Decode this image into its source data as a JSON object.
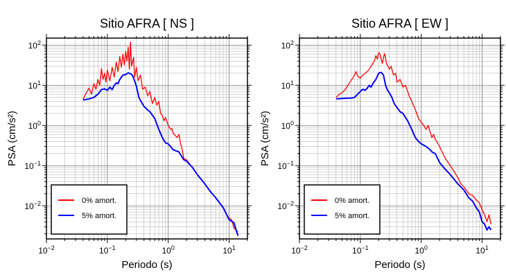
{
  "chart_data": [
    {
      "type": "line",
      "title": "Sitio AFRA [ NS ]",
      "xlabel": "Periodo (s)",
      "ylabel": "PSA (cm/s²)",
      "xscale": "log",
      "yscale": "log",
      "xlim": [
        0.01,
        20
      ],
      "ylim": [
        0.0015,
        150
      ],
      "grid": true,
      "legend_position": "bottom-left",
      "xticks": [
        {
          "value": 0.01,
          "base": "10",
          "exp": "−2"
        },
        {
          "value": 0.1,
          "base": "10",
          "exp": "−1"
        },
        {
          "value": 1,
          "base": "10",
          "exp": "0"
        },
        {
          "value": 10,
          "base": "10",
          "exp": "1"
        }
      ],
      "yticks": [
        {
          "value": 0.01,
          "base": "10",
          "exp": "−2"
        },
        {
          "value": 0.1,
          "base": "10",
          "exp": "−1"
        },
        {
          "value": 1,
          "base": "10",
          "exp": "0"
        },
        {
          "value": 10,
          "base": "10",
          "exp": "1"
        },
        {
          "value": 100,
          "base": "10",
          "exp": "2"
        }
      ],
      "series": [
        {
          "name": "0% amort.",
          "color": "#ff0000",
          "points": [
            [
              0.04,
              4.5
            ],
            [
              0.045,
              6.5
            ],
            [
              0.05,
              8.5
            ],
            [
              0.055,
              6.0
            ],
            [
              0.06,
              11.0
            ],
            [
              0.065,
              8.0
            ],
            [
              0.07,
              14.0
            ],
            [
              0.075,
              10.0
            ],
            [
              0.08,
              26.0
            ],
            [
              0.085,
              14.0
            ],
            [
              0.09,
              20.0
            ],
            [
              0.095,
              12.0
            ],
            [
              0.1,
              24.0
            ],
            [
              0.11,
              13.0
            ],
            [
              0.12,
              28.0
            ],
            [
              0.13,
              16.0
            ],
            [
              0.14,
              38.0
            ],
            [
              0.15,
              22.0
            ],
            [
              0.16,
              52.0
            ],
            [
              0.17,
              28.0
            ],
            [
              0.18,
              60.0
            ],
            [
              0.19,
              32.0
            ],
            [
              0.2,
              70.0
            ],
            [
              0.21,
              40.0
            ],
            [
              0.22,
              90.0
            ],
            [
              0.23,
              25.0
            ],
            [
              0.24,
              120.0
            ],
            [
              0.25,
              30.0
            ],
            [
              0.27,
              50.0
            ],
            [
              0.28,
              16.0
            ],
            [
              0.3,
              28.0
            ],
            [
              0.32,
              13.0
            ],
            [
              0.35,
              18.0
            ],
            [
              0.38,
              8.0
            ],
            [
              0.42,
              9.0
            ],
            [
              0.46,
              5.5
            ],
            [
              0.5,
              7.0
            ],
            [
              0.55,
              3.5
            ],
            [
              0.6,
              5.0
            ],
            [
              0.65,
              3.2
            ],
            [
              0.7,
              4.0
            ],
            [
              0.75,
              2.0
            ],
            [
              0.8,
              1.8
            ],
            [
              0.85,
              1.3
            ],
            [
              0.9,
              1.6
            ],
            [
              1.0,
              1.0
            ],
            [
              1.1,
              0.8
            ],
            [
              1.15,
              0.85
            ],
            [
              1.2,
              0.65
            ],
            [
              1.4,
              0.5
            ],
            [
              1.5,
              0.6
            ],
            [
              1.6,
              0.35
            ],
            [
              1.7,
              0.25
            ],
            [
              1.8,
              0.15
            ],
            [
              2.0,
              0.14
            ],
            [
              2.5,
              0.09
            ],
            [
              3.0,
              0.06
            ],
            [
              4.0,
              0.035
            ],
            [
              5.0,
              0.022
            ],
            [
              6.0,
              0.016
            ],
            [
              8.0,
              0.009
            ],
            [
              9.0,
              0.006
            ],
            [
              10.0,
              0.005
            ],
            [
              11.0,
              0.0045
            ],
            [
              12.0,
              0.0028
            ],
            [
              13.0,
              0.0025
            ],
            [
              14.0,
              0.0022
            ]
          ]
        },
        {
          "name": "5% amort.",
          "color": "#0000ff",
          "points": [
            [
              0.04,
              4.3
            ],
            [
              0.05,
              4.6
            ],
            [
              0.06,
              5.0
            ],
            [
              0.07,
              6.0
            ],
            [
              0.08,
              7.8
            ],
            [
              0.09,
              8.2
            ],
            [
              0.1,
              7.5
            ],
            [
              0.11,
              9.0
            ],
            [
              0.12,
              7.8
            ],
            [
              0.13,
              10.0
            ],
            [
              0.14,
              11.5
            ],
            [
              0.15,
              11.0
            ],
            [
              0.16,
              14.0
            ],
            [
              0.18,
              18.0
            ],
            [
              0.2,
              18.5
            ],
            [
              0.22,
              20.5
            ],
            [
              0.24,
              19.5
            ],
            [
              0.26,
              17.5
            ],
            [
              0.28,
              13.0
            ],
            [
              0.3,
              9.5
            ],
            [
              0.33,
              5.0
            ],
            [
              0.36,
              3.9
            ],
            [
              0.4,
              3.0
            ],
            [
              0.45,
              2.5
            ],
            [
              0.5,
              2.2
            ],
            [
              0.6,
              1.5
            ],
            [
              0.7,
              0.8
            ],
            [
              0.8,
              0.5
            ],
            [
              0.9,
              0.37
            ],
            [
              1.0,
              0.35
            ],
            [
              1.2,
              0.25
            ],
            [
              1.5,
              0.22
            ],
            [
              1.8,
              0.14
            ],
            [
              2.0,
              0.13
            ],
            [
              2.5,
              0.09
            ],
            [
              3.0,
              0.06
            ],
            [
              4.0,
              0.035
            ],
            [
              5.0,
              0.022
            ],
            [
              6.0,
              0.016
            ],
            [
              8.0,
              0.009
            ],
            [
              10.0,
              0.0045
            ],
            [
              12.0,
              0.0038
            ],
            [
              13.0,
              0.0025
            ],
            [
              14.0,
              0.0018
            ]
          ]
        }
      ]
    },
    {
      "type": "line",
      "title": "Sitio AFRA [ EW ]",
      "xlabel": "Periodo (s)",
      "ylabel": "PSA (cm/s²)",
      "xscale": "log",
      "yscale": "log",
      "xlim": [
        0.01,
        20
      ],
      "ylim": [
        0.0015,
        150
      ],
      "grid": true,
      "legend_position": "bottom-left",
      "xticks": [
        {
          "value": 0.01,
          "base": "10",
          "exp": "−2"
        },
        {
          "value": 0.1,
          "base": "10",
          "exp": "−1"
        },
        {
          "value": 1,
          "base": "10",
          "exp": "0"
        },
        {
          "value": 10,
          "base": "10",
          "exp": "1"
        }
      ],
      "yticks": [
        {
          "value": 0.01,
          "base": "10",
          "exp": "−2"
        },
        {
          "value": 0.1,
          "base": "10",
          "exp": "−1"
        },
        {
          "value": 1,
          "base": "10",
          "exp": "0"
        },
        {
          "value": 10,
          "base": "10",
          "exp": "1"
        },
        {
          "value": 100,
          "base": "10",
          "exp": "2"
        }
      ],
      "series": [
        {
          "name": "0% amort.",
          "color": "#ff0000",
          "points": [
            [
              0.04,
              5.0
            ],
            [
              0.045,
              6.0
            ],
            [
              0.05,
              6.5
            ],
            [
              0.055,
              7.5
            ],
            [
              0.06,
              9.0
            ],
            [
              0.065,
              11.0
            ],
            [
              0.07,
              13.0
            ],
            [
              0.075,
              15.0
            ],
            [
              0.08,
              18.0
            ],
            [
              0.085,
              22.0
            ],
            [
              0.09,
              17.0
            ],
            [
              0.1,
              15.0
            ],
            [
              0.11,
              18.0
            ],
            [
              0.12,
              20.0
            ],
            [
              0.13,
              22.0
            ],
            [
              0.14,
              25.0
            ],
            [
              0.15,
              30.0
            ],
            [
              0.16,
              35.0
            ],
            [
              0.17,
              40.0
            ],
            [
              0.18,
              55.0
            ],
            [
              0.19,
              45.0
            ],
            [
              0.2,
              65.0
            ],
            [
              0.21,
              60.0
            ],
            [
              0.22,
              45.0
            ],
            [
              0.23,
              35.0
            ],
            [
              0.24,
              50.0
            ],
            [
              0.25,
              62.0
            ],
            [
              0.27,
              35.0
            ],
            [
              0.3,
              25.0
            ],
            [
              0.32,
              30.0
            ],
            [
              0.35,
              18.0
            ],
            [
              0.38,
              20.0
            ],
            [
              0.4,
              12.0
            ],
            [
              0.45,
              14.0
            ],
            [
              0.5,
              9.0
            ],
            [
              0.55,
              10.0
            ],
            [
              0.6,
              7.0
            ],
            [
              0.65,
              5.0
            ],
            [
              0.7,
              4.0
            ],
            [
              0.8,
              2.5
            ],
            [
              0.9,
              1.5
            ],
            [
              1.0,
              1.2
            ],
            [
              1.1,
              1.0
            ],
            [
              1.2,
              0.8
            ],
            [
              1.3,
              1.0
            ],
            [
              1.4,
              0.7
            ],
            [
              1.5,
              0.5
            ],
            [
              1.6,
              0.6
            ],
            [
              1.7,
              0.45
            ],
            [
              1.8,
              0.4
            ],
            [
              2.0,
              0.3
            ],
            [
              2.2,
              0.22
            ],
            [
              2.5,
              0.15
            ],
            [
              3.0,
              0.1
            ],
            [
              3.5,
              0.07
            ],
            [
              4.0,
              0.05
            ],
            [
              4.5,
              0.035
            ],
            [
              5.0,
              0.03
            ],
            [
              6.0,
              0.02
            ],
            [
              7.0,
              0.018
            ],
            [
              8.0,
              0.014
            ],
            [
              9.0,
              0.012
            ],
            [
              10.0,
              0.008
            ],
            [
              11.0,
              0.006
            ],
            [
              12.0,
              0.004
            ],
            [
              13.0,
              0.006
            ],
            [
              14.0,
              0.0035
            ]
          ]
        },
        {
          "name": "5% amort.",
          "color": "#0000ff",
          "points": [
            [
              0.04,
              4.6
            ],
            [
              0.05,
              4.7
            ],
            [
              0.06,
              4.8
            ],
            [
              0.07,
              4.8
            ],
            [
              0.08,
              5.0
            ],
            [
              0.09,
              6.0
            ],
            [
              0.1,
              7.0
            ],
            [
              0.11,
              8.0
            ],
            [
              0.12,
              7.5
            ],
            [
              0.13,
              8.5
            ],
            [
              0.14,
              10.0
            ],
            [
              0.15,
              9.0
            ],
            [
              0.16,
              11.0
            ],
            [
              0.18,
              14.0
            ],
            [
              0.2,
              20.0
            ],
            [
              0.22,
              21.0
            ],
            [
              0.24,
              18.0
            ],
            [
              0.26,
              10.0
            ],
            [
              0.28,
              7.5
            ],
            [
              0.3,
              6.5
            ],
            [
              0.33,
              5.0
            ],
            [
              0.36,
              3.5
            ],
            [
              0.4,
              2.8
            ],
            [
              0.45,
              2.2
            ],
            [
              0.5,
              2.0
            ],
            [
              0.6,
              1.3
            ],
            [
              0.7,
              0.8
            ],
            [
              0.8,
              0.5
            ],
            [
              0.9,
              0.4
            ],
            [
              1.0,
              0.35
            ],
            [
              1.2,
              0.3
            ],
            [
              1.4,
              0.25
            ],
            [
              1.5,
              0.22
            ],
            [
              1.7,
              0.2
            ],
            [
              2.0,
              0.12
            ],
            [
              2.5,
              0.08
            ],
            [
              3.0,
              0.06
            ],
            [
              4.0,
              0.035
            ],
            [
              5.0,
              0.025
            ],
            [
              6.0,
              0.016
            ],
            [
              7.0,
              0.013
            ],
            [
              8.0,
              0.009
            ],
            [
              9.0,
              0.007
            ],
            [
              10.0,
              0.004
            ],
            [
              11.0,
              0.0035
            ],
            [
              12.0,
              0.0025
            ],
            [
              13.0,
              0.003
            ],
            [
              14.0,
              0.0025
            ]
          ]
        }
      ]
    }
  ]
}
